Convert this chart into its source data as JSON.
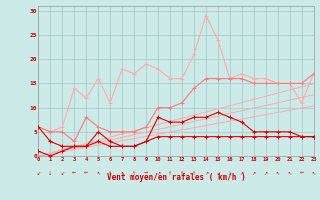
{
  "x": [
    0,
    1,
    2,
    3,
    4,
    5,
    6,
    7,
    8,
    9,
    10,
    11,
    12,
    13,
    14,
    15,
    16,
    17,
    18,
    19,
    20,
    21,
    22,
    23
  ],
  "line_dark_red_1": [
    1,
    0,
    1,
    2,
    2,
    3,
    2,
    2,
    2,
    3,
    4,
    4,
    4,
    4,
    4,
    4,
    4,
    4,
    4,
    4,
    4,
    4,
    4,
    4
  ],
  "line_dark_red_2": [
    6,
    3,
    2,
    2,
    2,
    5,
    3,
    2,
    2,
    3,
    8,
    7,
    7,
    8,
    8,
    9,
    8,
    7,
    5,
    5,
    5,
    5,
    4,
    4
  ],
  "line_med_pink_1": [
    6,
    5,
    5,
    3,
    8,
    6,
    5,
    5,
    5,
    6,
    10,
    10,
    11,
    14,
    16,
    16,
    16,
    16,
    15,
    15,
    15,
    15,
    15,
    17
  ],
  "line_light_pink": [
    6,
    5,
    6,
    14,
    12,
    16,
    11,
    18,
    17,
    19,
    18,
    16,
    16,
    21,
    29,
    24,
    16,
    17,
    16,
    16,
    15,
    15,
    11,
    17
  ],
  "line_trend1": [
    0,
    0.65,
    1.3,
    1.95,
    2.6,
    3.25,
    3.9,
    4.55,
    5.2,
    5.85,
    6.5,
    7.15,
    7.8,
    8.45,
    9.1,
    9.75,
    10.4,
    11.05,
    11.7,
    12.35,
    13.0,
    13.65,
    14.3,
    14.95
  ],
  "line_trend2": [
    0,
    0.55,
    1.1,
    1.65,
    2.2,
    2.75,
    3.3,
    3.85,
    4.4,
    4.95,
    5.5,
    6.05,
    6.6,
    7.15,
    7.7,
    8.25,
    8.8,
    9.35,
    9.9,
    10.45,
    11.0,
    11.55,
    12.1,
    12.65
  ],
  "line_trend3": [
    0,
    0.45,
    0.9,
    1.35,
    1.8,
    2.25,
    2.7,
    3.15,
    3.6,
    4.05,
    4.5,
    4.95,
    5.4,
    5.85,
    6.3,
    6.75,
    7.2,
    7.65,
    8.1,
    8.55,
    9.0,
    9.45,
    9.9,
    10.35
  ],
  "bg_color": "#cceae8",
  "grid_color": "#aacccc",
  "color_dark_red": "#dd0000",
  "color_med_pink": "#ff7777",
  "color_light_pink": "#ffaaaa",
  "color_trend": "#ffaaaa",
  "xlabel": "Vent moyen/en rafales ( km/h )",
  "yticks": [
    0,
    5,
    10,
    15,
    20,
    25,
    30
  ],
  "xlim": [
    0,
    23
  ],
  "ylim": [
    0,
    31
  ]
}
